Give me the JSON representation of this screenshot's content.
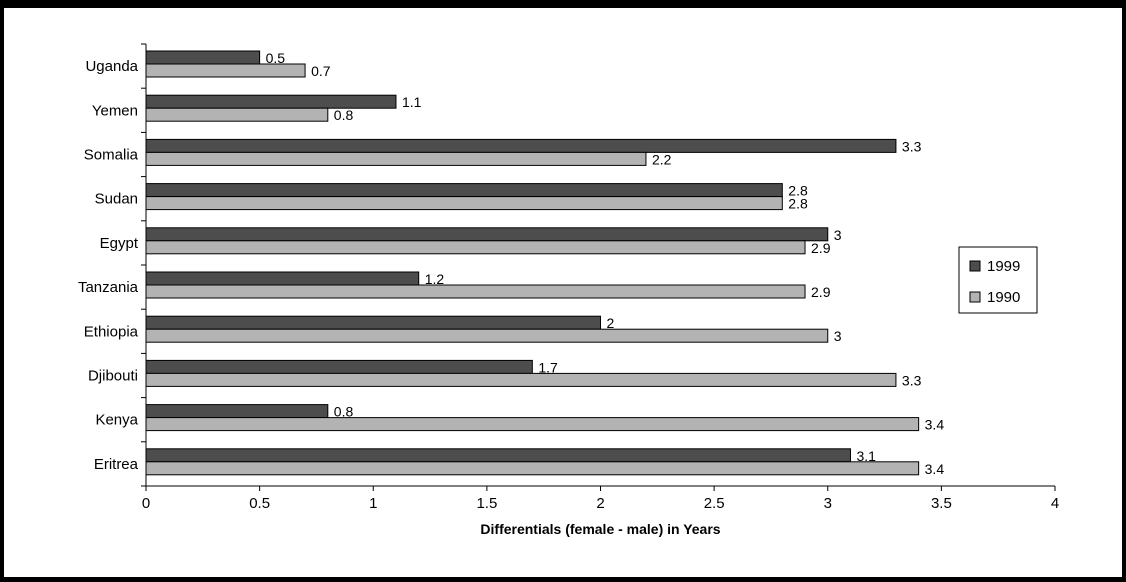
{
  "chart_data": {
    "type": "bar",
    "orientation": "horizontal",
    "categories": [
      "Uganda",
      "Yemen",
      "Somalia",
      "Sudan",
      "Egypt",
      "Tanzania",
      "Ethiopia",
      "Djibouti",
      "Kenya",
      "Eritrea"
    ],
    "series": [
      {
        "name": "1999",
        "color": "#4d4d4d",
        "values": [
          0.5,
          1.1,
          3.3,
          2.8,
          3,
          1.2,
          2,
          1.7,
          0.8,
          3.1
        ],
        "labels": [
          "0.5",
          "1.1",
          "3.3",
          "2.8",
          "3",
          "1.2",
          "2",
          "1.7",
          "0.8",
          "3.1"
        ]
      },
      {
        "name": "1990",
        "color": "#b3b3b3",
        "values": [
          0.7,
          0.8,
          2.2,
          2.8,
          2.9,
          2.9,
          3,
          3.3,
          3.4,
          3.4
        ],
        "labels": [
          "0.7",
          "0.8",
          "2.2",
          "2.8",
          "2.9",
          "2.9",
          "3",
          "3.3",
          "3.4",
          "3.4"
        ]
      }
    ],
    "xlabel": "Differentials (female - male) in Years",
    "ylabel": "",
    "xlim": [
      0,
      4
    ],
    "xticks": [
      0,
      0.5,
      1,
      1.5,
      2,
      2.5,
      3,
      3.5,
      4
    ],
    "xtick_labels": [
      "0",
      "0.5",
      "1",
      "1.5",
      "2",
      "2.5",
      "3",
      "3.5",
      "4"
    ],
    "grid": false,
    "legend": {
      "position": "right",
      "entries": [
        "1999",
        "1990"
      ]
    }
  }
}
